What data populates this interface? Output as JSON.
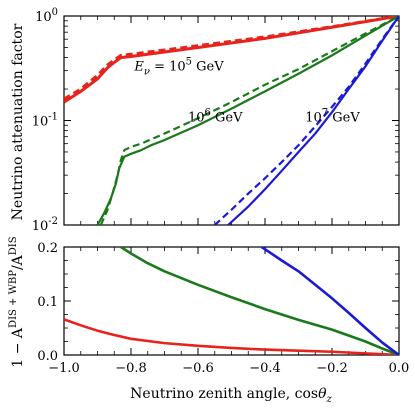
{
  "chart_data": [
    {
      "type": "line",
      "panel": "top",
      "xlabel": "",
      "ylabel": "Neutrino attenuation factor",
      "xlim": [
        -1.0,
        0.0
      ],
      "ylim": [
        0.01,
        1.0
      ],
      "yscale": "log",
      "y_tick_labels": [
        {
          "value": 1.0,
          "base": "10",
          "exp": "0"
        },
        {
          "value": 0.1,
          "base": "10",
          "exp": "-1"
        },
        {
          "value": 0.01,
          "base": "10",
          "exp": "-2"
        }
      ],
      "annotations": [
        {
          "id": "e1e5",
          "prefix": "E",
          "sub": "ν",
          "eq": " = 10",
          "exp": "5",
          "unit": " GeV",
          "color": "#e8231c",
          "at": [
            -0.79,
            0.3
          ]
        },
        {
          "id": "e1e6",
          "base": "10",
          "exp": "6",
          "unit": " GeV",
          "color": "#1a7a1a",
          "at": [
            -0.63,
            0.098
          ]
        },
        {
          "id": "e1e7",
          "base": "10",
          "exp": "7",
          "unit": " GeV",
          "color": "#1a1ad6",
          "at": [
            -0.28,
            0.098
          ]
        }
      ],
      "series": [
        {
          "id": "r-solid",
          "color": "#e8231c",
          "style": "solid",
          "x": [
            -1.0,
            -0.95,
            -0.9,
            -0.87,
            -0.85,
            -0.83,
            -0.8,
            -0.6,
            -0.4,
            -0.2,
            0.0
          ],
          "y": [
            0.15,
            0.19,
            0.25,
            0.32,
            0.36,
            0.4,
            0.41,
            0.5,
            0.61,
            0.78,
            1.0
          ]
        },
        {
          "id": "r-dash",
          "color": "#e8231c",
          "style": "dashed",
          "x": [
            -1.0,
            -0.95,
            -0.9,
            -0.87,
            -0.85,
            -0.83,
            -0.8,
            -0.6,
            -0.4,
            -0.2,
            0.0
          ],
          "y": [
            0.16,
            0.2,
            0.27,
            0.34,
            0.38,
            0.42,
            0.43,
            0.52,
            0.63,
            0.79,
            1.0
          ]
        },
        {
          "id": "g-solid",
          "color": "#1a7a1a",
          "style": "solid",
          "x": [
            -0.9,
            -0.88,
            -0.86,
            -0.845,
            -0.835,
            -0.82,
            -0.8,
            -0.77,
            -0.74,
            -0.7,
            -0.6,
            -0.5,
            -0.4,
            -0.3,
            -0.2,
            -0.1,
            0.0
          ],
          "y": [
            0.01,
            0.013,
            0.018,
            0.025,
            0.035,
            0.045,
            0.048,
            0.052,
            0.058,
            0.065,
            0.09,
            0.13,
            0.19,
            0.28,
            0.42,
            0.65,
            1.0
          ]
        },
        {
          "id": "g-dash",
          "color": "#1a7a1a",
          "style": "dashed",
          "x": [
            -0.89,
            -0.87,
            -0.855,
            -0.84,
            -0.83,
            -0.82,
            -0.8,
            -0.77,
            -0.74,
            -0.7,
            -0.6,
            -0.5,
            -0.4,
            -0.3,
            -0.2,
            -0.1,
            0.0
          ],
          "y": [
            0.01,
            0.014,
            0.02,
            0.03,
            0.042,
            0.052,
            0.056,
            0.06,
            0.066,
            0.075,
            0.105,
            0.15,
            0.22,
            0.31,
            0.46,
            0.68,
            1.0
          ]
        },
        {
          "id": "b-solid",
          "color": "#1a1ad6",
          "style": "solid",
          "x": [
            -0.51,
            -0.45,
            -0.4,
            -0.35,
            -0.3,
            -0.25,
            -0.2,
            -0.15,
            -0.1,
            -0.05,
            0.0
          ],
          "y": [
            0.01,
            0.015,
            0.022,
            0.033,
            0.05,
            0.075,
            0.12,
            0.2,
            0.33,
            0.58,
            1.0
          ]
        },
        {
          "id": "b-dash",
          "color": "#1a1ad6",
          "style": "dashed",
          "x": [
            -0.55,
            -0.5,
            -0.45,
            -0.4,
            -0.35,
            -0.3,
            -0.25,
            -0.2,
            -0.15,
            -0.1,
            -0.05,
            0.0
          ],
          "y": [
            0.01,
            0.014,
            0.02,
            0.028,
            0.04,
            0.058,
            0.088,
            0.135,
            0.21,
            0.35,
            0.6,
            1.0
          ]
        }
      ]
    },
    {
      "type": "line",
      "panel": "bottom",
      "xlabel": "Neutrino zenith angle, cosθz",
      "ylabel": "1 − A^(DIS + WBP)/A^DIS",
      "xlim": [
        -1.0,
        0.0
      ],
      "ylim": [
        0.0,
        0.2
      ],
      "x_ticks": [
        -1.0,
        -0.8,
        -0.6,
        -0.4,
        -0.2,
        0.0
      ],
      "x_tick_labels": [
        "−1.0",
        "−0.8",
        "−0.6",
        "−0.4",
        "−0.2",
        "0.0"
      ],
      "y_ticks": [
        0.0,
        0.1,
        0.2
      ],
      "y_tick_labels": [
        "0.0",
        "0.1",
        "0.2"
      ],
      "series": [
        {
          "id": "r-diff",
          "color": "#e8231c",
          "x": [
            -1.0,
            -0.95,
            -0.9,
            -0.85,
            -0.8,
            -0.7,
            -0.6,
            -0.5,
            -0.4,
            -0.3,
            -0.2,
            -0.1,
            0.0
          ],
          "y": [
            0.066,
            0.055,
            0.045,
            0.037,
            0.03,
            0.022,
            0.017,
            0.013,
            0.01,
            0.008,
            0.006,
            0.003,
            0.0
          ]
        },
        {
          "id": "g-diff",
          "color": "#1a7a1a",
          "x": [
            -0.83,
            -0.8,
            -0.75,
            -0.7,
            -0.6,
            -0.5,
            -0.4,
            -0.3,
            -0.2,
            -0.1,
            -0.05,
            0.0
          ],
          "y": [
            0.2,
            0.188,
            0.17,
            0.155,
            0.13,
            0.107,
            0.085,
            0.065,
            0.047,
            0.025,
            0.012,
            0.0
          ]
        },
        {
          "id": "b-diff",
          "color": "#1a1ad6",
          "x": [
            -0.41,
            -0.35,
            -0.3,
            -0.25,
            -0.2,
            -0.15,
            -0.1,
            -0.05,
            0.0
          ],
          "y": [
            0.2,
            0.175,
            0.155,
            0.13,
            0.105,
            0.078,
            0.05,
            0.023,
            0.0
          ]
        }
      ]
    }
  ],
  "labels": {
    "top_ylabel": "Neutrino attenuation factor",
    "bottom_ylabel_prefix": "1 − A",
    "bottom_ylabel_sup1": "DIS + WBP",
    "bottom_ylabel_slash": "/A",
    "bottom_ylabel_sup2": "DIS",
    "xlabel_text": "Neutrino zenith angle, cos",
    "xlabel_theta": "θ",
    "xlabel_sub": "z"
  }
}
